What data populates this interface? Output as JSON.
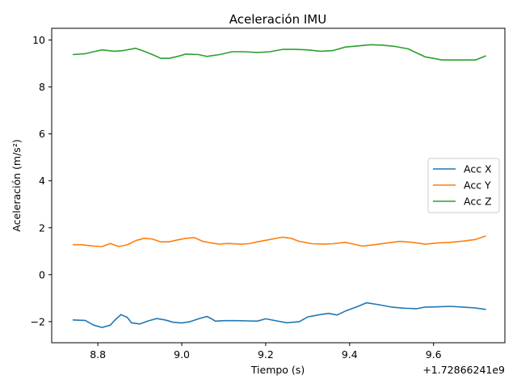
{
  "chart_data": {
    "type": "line",
    "title": "Aceleración IMU",
    "xlabel": "Tiempo (s)",
    "ylabel": "Aceleración (m/s²)",
    "x_offset_label": "+1.72866241e9",
    "xlim": [
      8.69,
      9.77
    ],
    "ylim": [
      -2.9,
      10.5
    ],
    "x_ticks": [
      8.8,
      9.0,
      9.2,
      9.4,
      9.6
    ],
    "x_tick_labels": [
      "8.8",
      "9.0",
      "9.2",
      "9.4",
      "9.6"
    ],
    "y_ticks": [
      -2,
      0,
      2,
      4,
      6,
      8,
      10
    ],
    "y_tick_labels": [
      "−2",
      "0",
      "2",
      "4",
      "6",
      "8",
      "10"
    ],
    "grid": false,
    "legend_position": "center-right",
    "series": [
      {
        "name": "Acc X",
        "color": "#1f77b4",
        "points": [
          [
            8.74,
            -1.93
          ],
          [
            8.77,
            -1.95
          ],
          [
            8.79,
            -2.15
          ],
          [
            8.81,
            -2.25
          ],
          [
            8.83,
            -2.15
          ],
          [
            8.84,
            -1.95
          ],
          [
            8.855,
            -1.7
          ],
          [
            8.87,
            -1.82
          ],
          [
            8.88,
            -2.05
          ],
          [
            8.9,
            -2.1
          ],
          [
            8.92,
            -1.97
          ],
          [
            8.94,
            -1.87
          ],
          [
            8.96,
            -1.93
          ],
          [
            8.98,
            -2.03
          ],
          [
            9.0,
            -2.06
          ],
          [
            9.02,
            -2.0
          ],
          [
            9.04,
            -1.88
          ],
          [
            9.06,
            -1.78
          ],
          [
            9.07,
            -1.87
          ],
          [
            9.08,
            -1.98
          ],
          [
            9.1,
            -1.96
          ],
          [
            9.13,
            -1.96
          ],
          [
            9.16,
            -1.97
          ],
          [
            9.18,
            -1.98
          ],
          [
            9.2,
            -1.88
          ],
          [
            9.22,
            -1.95
          ],
          [
            9.25,
            -2.05
          ],
          [
            9.28,
            -2.0
          ],
          [
            9.3,
            -1.8
          ],
          [
            9.33,
            -1.7
          ],
          [
            9.35,
            -1.65
          ],
          [
            9.37,
            -1.72
          ],
          [
            9.39,
            -1.55
          ],
          [
            9.42,
            -1.35
          ],
          [
            9.44,
            -1.2
          ],
          [
            9.47,
            -1.28
          ],
          [
            9.5,
            -1.38
          ],
          [
            9.53,
            -1.43
          ],
          [
            9.56,
            -1.45
          ],
          [
            9.58,
            -1.38
          ],
          [
            9.61,
            -1.37
          ],
          [
            9.64,
            -1.35
          ],
          [
            9.67,
            -1.38
          ],
          [
            9.7,
            -1.42
          ],
          [
            9.725,
            -1.48
          ]
        ]
      },
      {
        "name": "Acc Y",
        "color": "#ff7f0e",
        "points": [
          [
            8.74,
            1.28
          ],
          [
            8.76,
            1.28
          ],
          [
            8.79,
            1.22
          ],
          [
            8.81,
            1.2
          ],
          [
            8.83,
            1.33
          ],
          [
            8.85,
            1.2
          ],
          [
            8.87,
            1.27
          ],
          [
            8.89,
            1.45
          ],
          [
            8.91,
            1.55
          ],
          [
            8.93,
            1.52
          ],
          [
            8.95,
            1.4
          ],
          [
            8.97,
            1.4
          ],
          [
            8.99,
            1.48
          ],
          [
            9.01,
            1.55
          ],
          [
            9.03,
            1.58
          ],
          [
            9.05,
            1.42
          ],
          [
            9.07,
            1.35
          ],
          [
            9.09,
            1.3
          ],
          [
            9.11,
            1.33
          ],
          [
            9.14,
            1.3
          ],
          [
            9.16,
            1.32
          ],
          [
            9.18,
            1.4
          ],
          [
            9.21,
            1.5
          ],
          [
            9.24,
            1.6
          ],
          [
            9.26,
            1.55
          ],
          [
            9.28,
            1.42
          ],
          [
            9.31,
            1.32
          ],
          [
            9.34,
            1.3
          ],
          [
            9.36,
            1.32
          ],
          [
            9.39,
            1.38
          ],
          [
            9.41,
            1.3
          ],
          [
            9.43,
            1.22
          ],
          [
            9.46,
            1.28
          ],
          [
            9.49,
            1.35
          ],
          [
            9.52,
            1.42
          ],
          [
            9.55,
            1.38
          ],
          [
            9.58,
            1.3
          ],
          [
            9.61,
            1.35
          ],
          [
            9.64,
            1.38
          ],
          [
            9.67,
            1.43
          ],
          [
            9.7,
            1.5
          ],
          [
            9.725,
            1.65
          ]
        ]
      },
      {
        "name": "Acc Z",
        "color": "#2ca02c",
        "points": [
          [
            8.74,
            9.38
          ],
          [
            8.77,
            9.42
          ],
          [
            8.79,
            9.5
          ],
          [
            8.81,
            9.58
          ],
          [
            8.84,
            9.52
          ],
          [
            8.86,
            9.55
          ],
          [
            8.89,
            9.65
          ],
          [
            8.91,
            9.52
          ],
          [
            8.93,
            9.38
          ],
          [
            8.95,
            9.22
          ],
          [
            8.97,
            9.22
          ],
          [
            8.99,
            9.3
          ],
          [
            9.01,
            9.4
          ],
          [
            9.04,
            9.38
          ],
          [
            9.06,
            9.3
          ],
          [
            9.09,
            9.38
          ],
          [
            9.12,
            9.5
          ],
          [
            9.15,
            9.5
          ],
          [
            9.18,
            9.47
          ],
          [
            9.21,
            9.5
          ],
          [
            9.24,
            9.6
          ],
          [
            9.27,
            9.6
          ],
          [
            9.3,
            9.58
          ],
          [
            9.33,
            9.52
          ],
          [
            9.36,
            9.55
          ],
          [
            9.39,
            9.7
          ],
          [
            9.42,
            9.75
          ],
          [
            9.45,
            9.8
          ],
          [
            9.48,
            9.78
          ],
          [
            9.51,
            9.72
          ],
          [
            9.54,
            9.62
          ],
          [
            9.56,
            9.45
          ],
          [
            9.58,
            9.28
          ],
          [
            9.6,
            9.22
          ],
          [
            9.62,
            9.15
          ],
          [
            9.65,
            9.15
          ],
          [
            9.68,
            9.15
          ],
          [
            9.7,
            9.15
          ],
          [
            9.725,
            9.33
          ]
        ]
      }
    ]
  }
}
